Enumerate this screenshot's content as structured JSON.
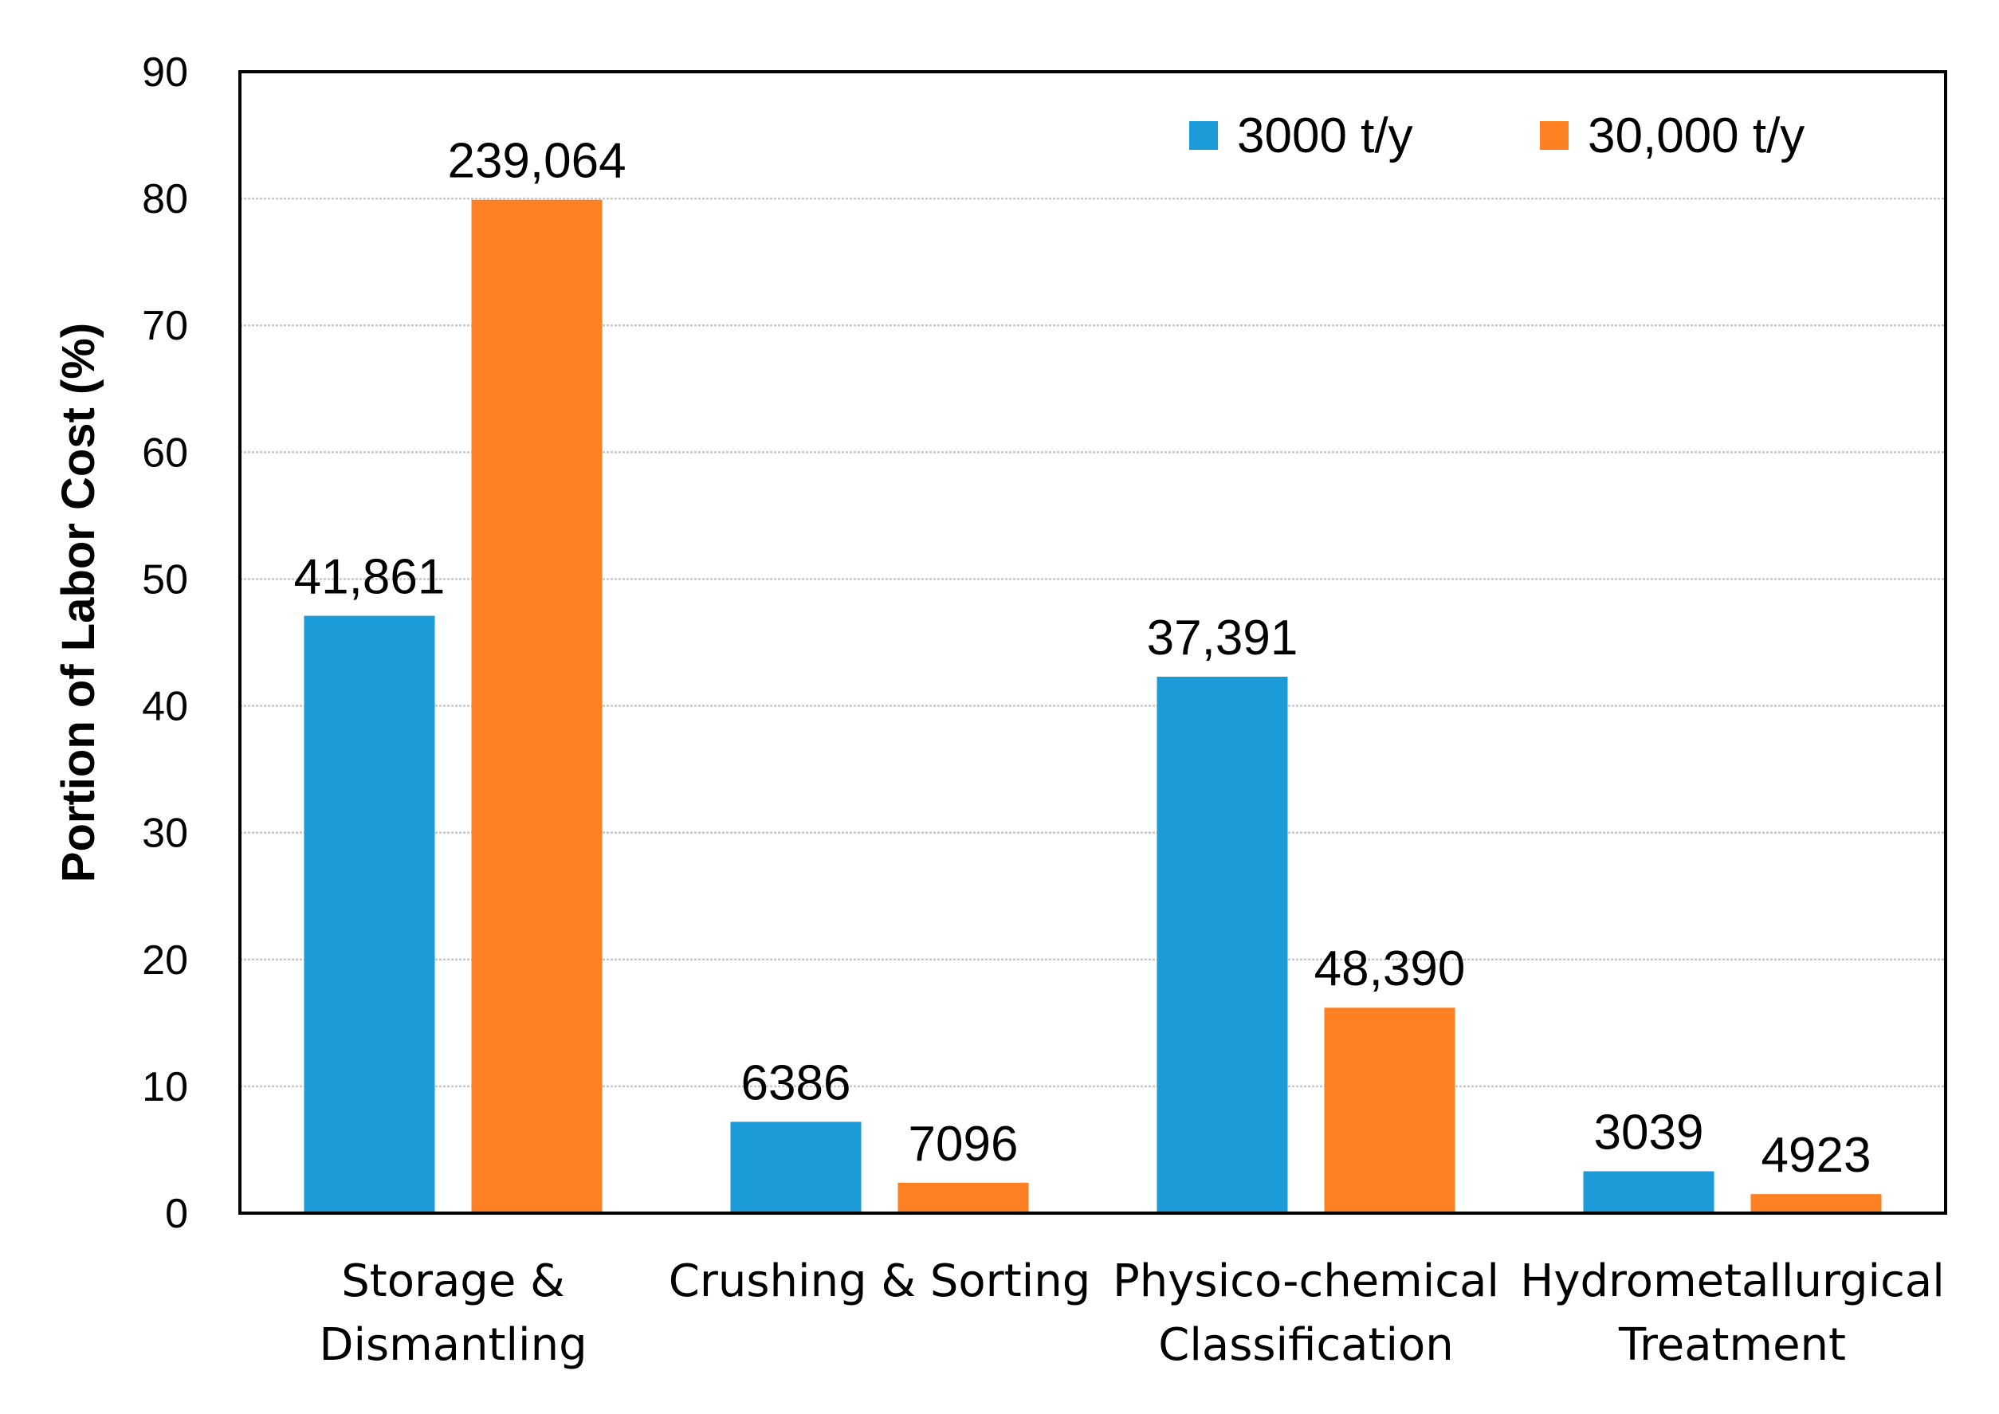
{
  "chart_data": {
    "type": "bar",
    "title": "",
    "xlabel": "",
    "ylabel": "Portion of Labor Cost (%)",
    "ylim": [
      0,
      90
    ],
    "yticks": [
      0,
      10,
      20,
      30,
      40,
      50,
      60,
      70,
      80,
      90
    ],
    "grid": true,
    "legend_position": "top-right",
    "categories": [
      [
        "Storage &",
        "Dismantling"
      ],
      [
        "Crushing & Sorting"
      ],
      [
        "Physico-chemical",
        "Classification"
      ],
      [
        "Hydrometallurgical",
        "Treatment"
      ]
    ],
    "series": [
      {
        "name": "3000 t/y",
        "color": "#1b9bd7",
        "values": [
          47.1,
          7.2,
          42.3,
          3.3
        ],
        "labels": [
          "41,861",
          "6386",
          "37,391",
          "3039"
        ]
      },
      {
        "name": "30,000 t/y",
        "color": "#fd8023",
        "values": [
          79.9,
          2.4,
          16.2,
          1.5
        ],
        "labels": [
          "239,064",
          "7096",
          "48,390",
          "4923"
        ]
      }
    ]
  }
}
